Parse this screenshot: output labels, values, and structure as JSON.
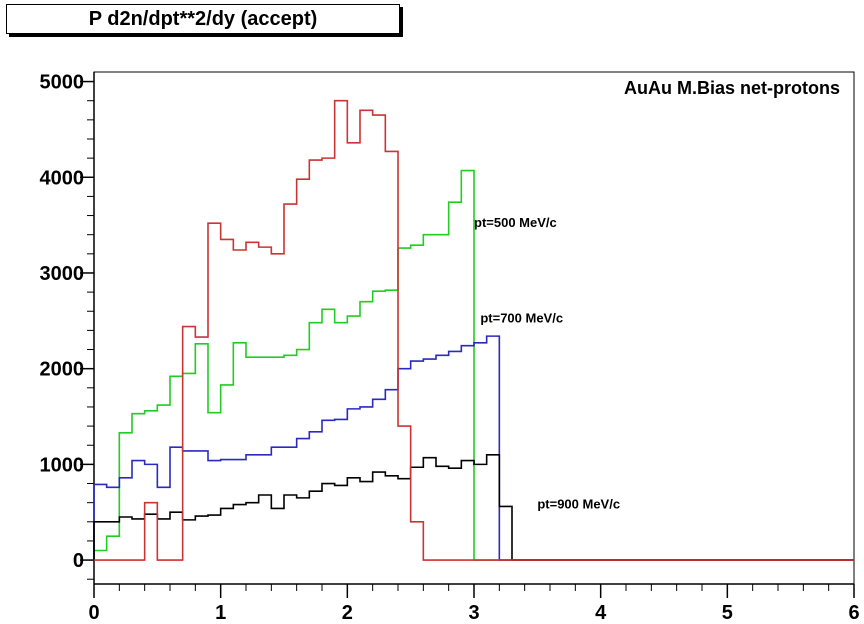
{
  "title": "P d2n/dpt**2/dy (accept)",
  "chart_data": {
    "type": "line",
    "title": "P d2n/dpt**2/dy (accept)",
    "plot_label": "AuAu M.Bias net-protons",
    "xlim": [
      0,
      6
    ],
    "ylim": [
      -250,
      5100
    ],
    "x_ticks": [
      "0",
      "1",
      "2",
      "3",
      "4",
      "5",
      "6"
    ],
    "y_ticks": [
      "0",
      "1000",
      "2000",
      "3000",
      "4000",
      "5000"
    ],
    "grid": false,
    "bin_width": 0.1,
    "bin_start": 0,
    "series": [
      {
        "name": "pt=500 MeV/c",
        "color": "#22cc22",
        "label_at": [
          3.0,
          3480
        ],
        "values": [
          100,
          250,
          1330,
          1530,
          1560,
          1620,
          1920,
          1950,
          2260,
          1540,
          1830,
          2270,
          2120,
          2120,
          2120,
          2140,
          2200,
          2480,
          2620,
          2480,
          2550,
          2700,
          2810,
          2820,
          3260,
          3290,
          3400,
          3400,
          3740,
          4070,
          0,
          0,
          0,
          0,
          0,
          0,
          0,
          0,
          0,
          0,
          0,
          0,
          0,
          0,
          0,
          0,
          0,
          0,
          0,
          0,
          0,
          0,
          0,
          0,
          0,
          0,
          0,
          0,
          0,
          0
        ]
      },
      {
        "name": "pt=700 MeV/c",
        "color": "#2a2ac0",
        "label_at": [
          3.05,
          2480
        ],
        "values": [
          790,
          760,
          860,
          1040,
          1000,
          760,
          1180,
          1140,
          1140,
          1040,
          1050,
          1050,
          1100,
          1100,
          1180,
          1180,
          1270,
          1340,
          1460,
          1470,
          1580,
          1600,
          1680,
          1780,
          2000,
          2080,
          2100,
          2140,
          2180,
          2240,
          2270,
          2340,
          0,
          0,
          0,
          0,
          0,
          0,
          0,
          0,
          0,
          0,
          0,
          0,
          0,
          0,
          0,
          0,
          0,
          0,
          0,
          0,
          0,
          0,
          0,
          0,
          0,
          0,
          0,
          0
        ]
      },
      {
        "name": "pt=900 MeV/c",
        "color": "#000000",
        "label_at": [
          3.5,
          540
        ],
        "values": [
          400,
          400,
          450,
          430,
          480,
          430,
          500,
          420,
          460,
          470,
          540,
          580,
          600,
          680,
          540,
          680,
          650,
          720,
          800,
          780,
          860,
          820,
          920,
          880,
          850,
          970,
          1070,
          980,
          960,
          1040,
          1000,
          1100,
          560,
          0,
          0,
          0,
          0,
          0,
          0,
          0,
          0,
          0,
          0,
          0,
          0,
          0,
          0,
          0,
          0,
          0,
          0,
          0,
          0,
          0,
          0,
          0,
          0,
          0,
          0,
          0
        ]
      },
      {
        "name": "",
        "color": "#cc3333",
        "values": [
          0,
          0,
          0,
          0,
          600,
          0,
          0,
          2440,
          2330,
          3520,
          3350,
          3240,
          3320,
          3270,
          3200,
          3720,
          3980,
          4180,
          4200,
          4800,
          4360,
          4700,
          4650,
          4270,
          1400,
          400,
          0,
          0,
          0,
          0,
          0,
          0,
          0,
          0,
          0,
          0,
          0,
          0,
          0,
          0,
          0,
          0,
          0,
          0,
          0,
          0,
          0,
          0,
          0,
          0,
          0,
          0,
          0,
          0,
          0,
          0,
          0,
          0,
          0,
          0
        ]
      }
    ]
  }
}
